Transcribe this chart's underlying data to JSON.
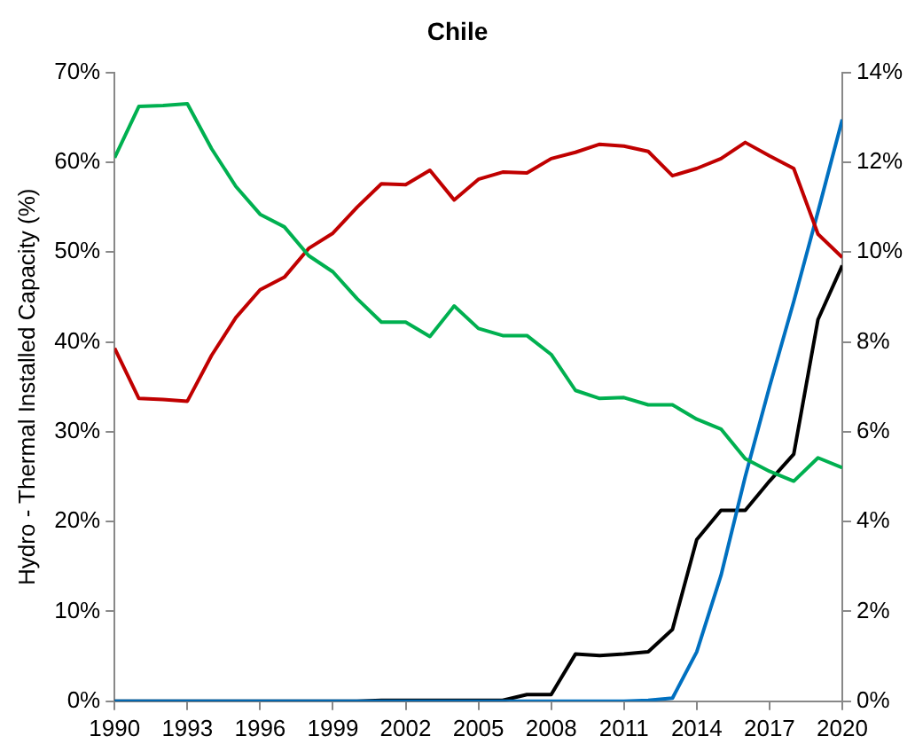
{
  "chart_data": {
    "type": "line",
    "title": "Chile",
    "ylabel": "Hydro - Thermal Installed Capacity (%)",
    "x": [
      1990,
      1991,
      1992,
      1993,
      1994,
      1995,
      1996,
      1997,
      1998,
      1999,
      2000,
      2001,
      2002,
      2003,
      2004,
      2005,
      2006,
      2007,
      2008,
      2009,
      2010,
      2011,
      2012,
      2013,
      2014,
      2015,
      2016,
      2017,
      2018,
      2019,
      2020
    ],
    "series": [
      {
        "color": "#00b050",
        "values": [
          60.5,
          66.2,
          66.3,
          66.5,
          61.5,
          57.3,
          54.2,
          52.8,
          49.6,
          47.8,
          44.8,
          42.2,
          42.2,
          40.6,
          44.0,
          41.5,
          40.7,
          40.7,
          38.6,
          34.6,
          33.7,
          33.8,
          33.0,
          33.0,
          31.4,
          30.3,
          27.0,
          25.6,
          24.5,
          27.1,
          26.0
        ]
      },
      {
        "color": "#c00000",
        "values": [
          39.3,
          33.7,
          33.6,
          33.4,
          38.5,
          42.7,
          45.8,
          47.2,
          50.4,
          52.1,
          55.0,
          57.6,
          57.5,
          59.1,
          55.8,
          58.1,
          58.9,
          58.8,
          60.4,
          61.1,
          62.0,
          61.8,
          61.2,
          58.5,
          59.3,
          60.4,
          62.2,
          60.7,
          59.3,
          52.0,
          49.4
        ]
      },
      {
        "color": "#0070c0",
        "axis": "y2",
        "values": [
          0,
          0,
          0,
          0,
          0,
          0,
          0,
          0,
          0,
          0,
          0,
          0,
          0,
          0,
          0,
          0,
          0,
          0,
          0,
          0,
          0,
          0,
          0.02,
          0.07,
          1.1,
          2.8,
          5.0,
          7.0,
          8.9,
          10.9,
          12.95
        ]
      },
      {
        "color": "#000000",
        "axis": "y2",
        "values": [
          0,
          0,
          0,
          0,
          0,
          0,
          0,
          0,
          0,
          0,
          0,
          0.02,
          0.02,
          0.02,
          0.02,
          0.02,
          0.02,
          0.15,
          0.15,
          1.05,
          1.02,
          1.05,
          1.1,
          1.6,
          3.6,
          4.25,
          4.25,
          4.9,
          5.5,
          8.5,
          9.7
        ]
      }
    ],
    "xlim": [
      1990,
      2020
    ],
    "xticks": [
      1990,
      1993,
      1996,
      1999,
      2002,
      2005,
      2008,
      2011,
      2014,
      2017,
      2020
    ],
    "ylim": [
      0,
      70
    ],
    "yticks": [
      {
        "value": 0,
        "label": "0%"
      },
      {
        "value": 10,
        "label": "10%"
      },
      {
        "value": 20,
        "label": "20%"
      },
      {
        "value": 30,
        "label": "30%"
      },
      {
        "value": 40,
        "label": "40%"
      },
      {
        "value": 50,
        "label": "50%"
      },
      {
        "value": 60,
        "label": "60%"
      },
      {
        "value": 70,
        "label": "70%"
      }
    ],
    "y2lim": [
      0,
      14
    ],
    "y2ticks": [
      {
        "value": 0,
        "label": "0%"
      },
      {
        "value": 2,
        "label": "2%"
      },
      {
        "value": 4,
        "label": "4%"
      },
      {
        "value": 6,
        "label": "6%"
      },
      {
        "value": 8,
        "label": "8%"
      },
      {
        "value": 10,
        "label": "10%"
      },
      {
        "value": 12,
        "label": "12%"
      },
      {
        "value": 14,
        "label": "14%"
      }
    ],
    "grid": false,
    "legend": false,
    "marker": "none",
    "line_style": "solid"
  }
}
